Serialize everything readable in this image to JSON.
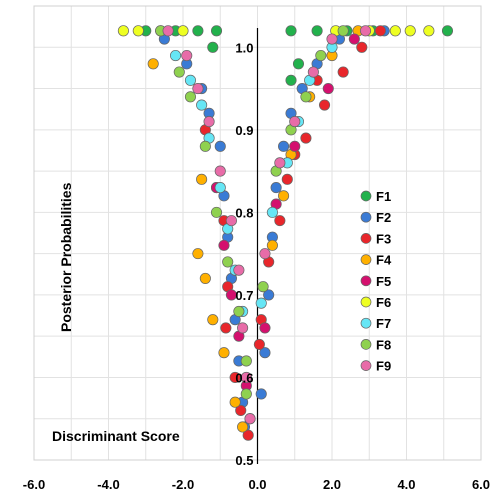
{
  "chart_data": {
    "type": "scatter",
    "title": "",
    "xlabel": "Discriminant Score",
    "ylabel": "Posterior Probabilities",
    "xlim": [
      -6.0,
      6.0
    ],
    "ylim": [
      0.5,
      1.05
    ],
    "x_ticks": [
      "-6.0",
      "-4.0",
      "-2.0",
      "0.0",
      "2.0",
      "4.0",
      "6.0"
    ],
    "y_ticks": [
      "0.5",
      "0.6",
      "0.7",
      "0.8",
      "0.9",
      "1.0"
    ],
    "grid": true,
    "legend_position": "right",
    "series": [
      {
        "name": "F1",
        "color": "#22b14c",
        "points": [
          [
            -3.0,
            1.02
          ],
          [
            -2.2,
            1.02
          ],
          [
            -1.6,
            1.02
          ],
          [
            -1.1,
            1.02
          ],
          [
            -1.2,
            1.0
          ],
          [
            0.9,
            1.02
          ],
          [
            1.6,
            1.02
          ],
          [
            2.4,
            1.02
          ],
          [
            3.1,
            1.02
          ],
          [
            5.1,
            1.02
          ],
          [
            1.1,
            0.98
          ],
          [
            0.9,
            0.96
          ]
        ]
      },
      {
        "name": "F2",
        "color": "#3a7bd5",
        "points": [
          [
            -2.5,
            1.01
          ],
          [
            -1.9,
            0.98
          ],
          [
            -1.5,
            0.95
          ],
          [
            -1.3,
            0.92
          ],
          [
            -1.0,
            0.88
          ],
          [
            -0.9,
            0.82
          ],
          [
            -0.8,
            0.77
          ],
          [
            -0.7,
            0.72
          ],
          [
            -0.6,
            0.67
          ],
          [
            -0.5,
            0.62
          ],
          [
            -0.4,
            0.57
          ],
          [
            -0.35,
            0.54
          ],
          [
            0.1,
            0.58
          ],
          [
            0.2,
            0.63
          ],
          [
            0.3,
            0.7
          ],
          [
            0.4,
            0.77
          ],
          [
            0.5,
            0.83
          ],
          [
            0.7,
            0.88
          ],
          [
            0.9,
            0.92
          ],
          [
            1.2,
            0.95
          ],
          [
            1.6,
            0.98
          ],
          [
            2.2,
            1.01
          ],
          [
            3.4,
            1.02
          ]
        ]
      },
      {
        "name": "F3",
        "color": "#e8262b",
        "points": [
          [
            -1.4,
            0.9
          ],
          [
            -1.1,
            0.83
          ],
          [
            -0.9,
            0.79
          ],
          [
            -0.8,
            0.71
          ],
          [
            -0.85,
            0.66
          ],
          [
            -0.6,
            0.6
          ],
          [
            -0.45,
            0.56
          ],
          [
            -0.25,
            0.53
          ],
          [
            0.05,
            0.64
          ],
          [
            0.1,
            0.67
          ],
          [
            0.3,
            0.74
          ],
          [
            0.6,
            0.79
          ],
          [
            0.8,
            0.84
          ],
          [
            1.0,
            0.87
          ],
          [
            1.3,
            0.89
          ],
          [
            1.8,
            0.93
          ],
          [
            2.3,
            0.97
          ],
          [
            2.8,
            1.0
          ],
          [
            3.3,
            1.02
          ],
          [
            1.6,
            0.96
          ]
        ]
      },
      {
        "name": "F4",
        "color": "#ffb000",
        "points": [
          [
            -2.8,
            0.98
          ],
          [
            -1.5,
            0.84
          ],
          [
            -1.6,
            0.75
          ],
          [
            -1.4,
            0.72
          ],
          [
            -1.2,
            0.67
          ],
          [
            -0.9,
            0.63
          ],
          [
            -0.6,
            0.57
          ],
          [
            -0.4,
            0.54
          ],
          [
            0.4,
            0.76
          ],
          [
            0.7,
            0.82
          ],
          [
            0.9,
            0.87
          ],
          [
            1.4,
            0.94
          ],
          [
            2.0,
            0.99
          ],
          [
            2.7,
            1.02
          ]
        ]
      },
      {
        "name": "F5",
        "color": "#d4106e",
        "points": [
          [
            -1.1,
            0.83
          ],
          [
            -0.9,
            0.76
          ],
          [
            -0.7,
            0.7
          ],
          [
            -0.5,
            0.65
          ],
          [
            -0.3,
            0.59
          ],
          [
            -0.2,
            0.55
          ],
          [
            0.2,
            0.66
          ],
          [
            0.5,
            0.81
          ],
          [
            1.0,
            0.88
          ],
          [
            1.9,
            0.95
          ],
          [
            2.6,
            1.01
          ]
        ]
      },
      {
        "name": "F6",
        "color": "#eeff22",
        "points": [
          [
            -3.6,
            1.02
          ],
          [
            -3.2,
            1.02
          ],
          [
            -2.6,
            1.02
          ],
          [
            -2.0,
            1.02
          ],
          [
            2.1,
            1.02
          ],
          [
            3.0,
            1.02
          ],
          [
            3.7,
            1.02
          ],
          [
            4.1,
            1.02
          ],
          [
            4.6,
            1.02
          ]
        ]
      },
      {
        "name": "F7",
        "color": "#66e6f5",
        "points": [
          [
            -2.2,
            0.99
          ],
          [
            -1.8,
            0.96
          ],
          [
            -1.5,
            0.93
          ],
          [
            -1.3,
            0.89
          ],
          [
            -1.0,
            0.83
          ],
          [
            -0.8,
            0.78
          ],
          [
            -0.6,
            0.73
          ],
          [
            -0.4,
            0.68
          ],
          [
            0.1,
            0.69
          ],
          [
            0.4,
            0.8
          ],
          [
            0.8,
            0.86
          ],
          [
            1.1,
            0.91
          ],
          [
            1.4,
            0.96
          ],
          [
            2.0,
            1.0
          ]
        ]
      },
      {
        "name": "F8",
        "color": "#8fd14f",
        "points": [
          [
            -2.6,
            1.02
          ],
          [
            -2.1,
            0.97
          ],
          [
            -1.8,
            0.94
          ],
          [
            -1.4,
            0.88
          ],
          [
            -1.1,
            0.8
          ],
          [
            -0.8,
            0.74
          ],
          [
            -0.5,
            0.68
          ],
          [
            -0.3,
            0.62
          ],
          [
            -0.3,
            0.58
          ],
          [
            0.15,
            0.71
          ],
          [
            0.5,
            0.85
          ],
          [
            0.9,
            0.9
          ],
          [
            1.3,
            0.94
          ],
          [
            1.7,
            0.99
          ],
          [
            2.3,
            1.02
          ]
        ]
      },
      {
        "name": "F9",
        "color": "#e86ca8",
        "points": [
          [
            -2.4,
            1.02
          ],
          [
            -1.9,
            0.99
          ],
          [
            -1.6,
            0.95
          ],
          [
            -1.3,
            0.91
          ],
          [
            -1.0,
            0.85
          ],
          [
            -0.7,
            0.79
          ],
          [
            -0.5,
            0.73
          ],
          [
            -0.4,
            0.66
          ],
          [
            -0.3,
            0.6
          ],
          [
            -0.2,
            0.55
          ],
          [
            0.2,
            0.75
          ],
          [
            0.6,
            0.86
          ],
          [
            1.0,
            0.91
          ],
          [
            1.5,
            0.97
          ],
          [
            2.0,
            1.01
          ],
          [
            2.9,
            1.02
          ]
        ]
      }
    ]
  }
}
